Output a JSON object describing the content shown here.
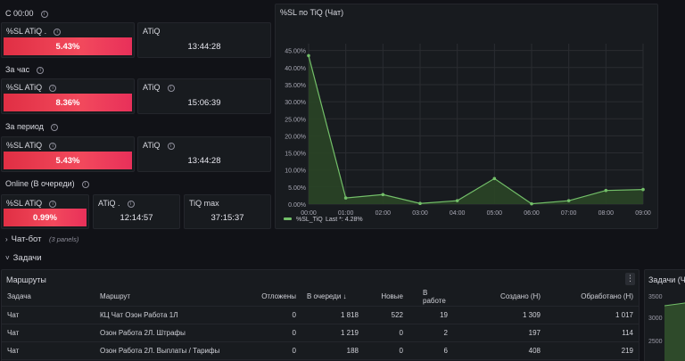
{
  "sections": {
    "since_midnight": "С 00:00",
    "per_hour": "За час",
    "per_period": "За период",
    "online": "Online (В очереди)"
  },
  "stats": {
    "row1": {
      "sl_title": "%SL ATiQ .",
      "sl_value": "5.43%",
      "atiq_title": "ATiQ",
      "atiq_value": "13:44:28"
    },
    "row2": {
      "sl_title": "%SL ATiQ",
      "sl_value": "8.36%",
      "atiq_title": "ATiQ",
      "atiq_value": "15:06:39"
    },
    "row3": {
      "sl_title": "%SL ATiQ",
      "sl_value": "5.43%",
      "atiq_title": "ATiQ",
      "atiq_value": "13:44:28"
    },
    "row4": {
      "sl_title": "%SL ATiQ",
      "sl_value": "0.99%",
      "atiq_title": "ATiQ .",
      "atiq_value": "12:14:57",
      "tiq_title": "TiQ max",
      "tiq_value": "37:15:37"
    }
  },
  "chart_panel_title": "%SL по TiQ (Чат)",
  "chart_data": {
    "type": "area",
    "title": "%SL по TiQ (Чат)",
    "categories": [
      "00:00",
      "01:00",
      "02:00",
      "03:00",
      "04:00",
      "05:00",
      "06:00",
      "07:00",
      "08:00",
      "09:00"
    ],
    "series": [
      {
        "name": "%SL_TiQ",
        "values": [
          43.5,
          1.8,
          2.8,
          0.2,
          1.0,
          7.5,
          0.1,
          1.0,
          4.0,
          4.28
        ]
      }
    ],
    "yticks": [
      "0.00%",
      "5.00%",
      "10.00%",
      "15.00%",
      "20.00%",
      "25.00%",
      "30.00%",
      "35.00%",
      "40.00%",
      "45.00%"
    ],
    "ylim": [
      0,
      47
    ],
    "legend_name": "%SL_TiQ",
    "legend_last": "Last *: 4.28%",
    "color": "#73bf69"
  },
  "rows": {
    "chatbot_label": "Чат-бот",
    "chatbot_count": "(3 panels)",
    "tasks_label": "Задачи"
  },
  "routes": {
    "title": "Маршруты",
    "columns": [
      "Задача",
      "Маршрут",
      "Отложены",
      "В очереди ↓",
      "Новые",
      "В работе",
      "Создано (Н)",
      "Обработано (Н)"
    ],
    "rows": [
      [
        "Чат",
        "КЦ Чат Озон Работа 1Л",
        "0",
        "1 818",
        "522",
        "19",
        "1 309",
        "1 017"
      ],
      [
        "Чат",
        "Озон Работа 2Л. Штрафы",
        "0",
        "1 219",
        "0",
        "2",
        "197",
        "114"
      ],
      [
        "Чат",
        "Озон Работа 2Л. Выплаты / Тарифы",
        "0",
        "188",
        "0",
        "6",
        "408",
        "219"
      ]
    ]
  },
  "tasks_panel": {
    "title": "Задачи (Ча",
    "yticks": [
      "3500",
      "3000",
      "2500"
    ]
  }
}
